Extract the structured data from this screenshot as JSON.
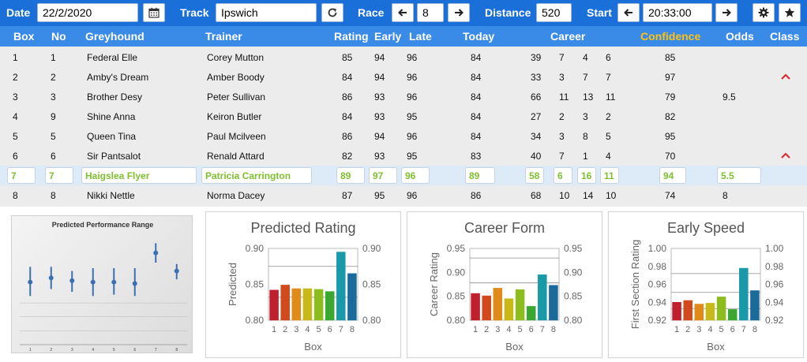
{
  "topbar": {
    "date_label": "Date",
    "date_value": "22/2/2020",
    "track_label": "Track",
    "track_value": "Ipswich",
    "race_label": "Race",
    "race_value": "8",
    "distance_label": "Distance",
    "distance_value": "520",
    "start_label": "Start",
    "start_value": "20:33:00"
  },
  "headers": {
    "box": "Box",
    "no": "No",
    "greyhound": "Greyhound",
    "trainer": "Trainer",
    "rating": "Rating",
    "early": "Early",
    "late": "Late",
    "today": "Today",
    "career": "Career",
    "confidence": "Confidence",
    "odds": "Odds",
    "class": "Class"
  },
  "rows": [
    {
      "box": "1",
      "no": "1",
      "greyhound": "Federal Elle",
      "trainer": "Corey Mutton",
      "rating": "85",
      "early": "94",
      "late": "96",
      "today": "84",
      "c1": "39",
      "c2": "7",
      "c3": "4",
      "c4": "6",
      "confidence": "85",
      "odds": "",
      "class_up": false
    },
    {
      "box": "2",
      "no": "2",
      "greyhound": "Amby's Dream",
      "trainer": "Amber Boody",
      "rating": "84",
      "early": "94",
      "late": "96",
      "today": "84",
      "c1": "33",
      "c2": "3",
      "c3": "7",
      "c4": "7",
      "confidence": "97",
      "odds": "",
      "class_up": true
    },
    {
      "box": "3",
      "no": "3",
      "greyhound": "Brother Desy",
      "trainer": "Peter Sullivan",
      "rating": "86",
      "early": "93",
      "late": "96",
      "today": "84",
      "c1": "66",
      "c2": "11",
      "c3": "13",
      "c4": "11",
      "confidence": "79",
      "odds": "9.5",
      "class_up": false
    },
    {
      "box": "4",
      "no": "9",
      "greyhound": "Shine Anna",
      "trainer": "Keiron Butler",
      "rating": "84",
      "early": "93",
      "late": "95",
      "today": "84",
      "c1": "27",
      "c2": "2",
      "c3": "3",
      "c4": "2",
      "confidence": "82",
      "odds": "",
      "class_up": false
    },
    {
      "box": "5",
      "no": "5",
      "greyhound": "Queen Tina",
      "trainer": "Paul Mcilveen",
      "rating": "86",
      "early": "94",
      "late": "96",
      "today": "84",
      "c1": "34",
      "c2": "3",
      "c3": "8",
      "c4": "5",
      "confidence": "95",
      "odds": "",
      "class_up": false
    },
    {
      "box": "6",
      "no": "6",
      "greyhound": "Sir Pantsalot",
      "trainer": "Renald Attard",
      "rating": "82",
      "early": "93",
      "late": "95",
      "today": "83",
      "c1": "40",
      "c2": "7",
      "c3": "1",
      "c4": "4",
      "confidence": "70",
      "odds": "",
      "class_up": true
    },
    {
      "box": "7",
      "no": "7",
      "greyhound": "Haigslea Flyer",
      "trainer": "Patricia Carrington",
      "rating": "89",
      "early": "97",
      "late": "96",
      "today": "89",
      "c1": "58",
      "c2": "6",
      "c3": "16",
      "c4": "11",
      "confidence": "94",
      "odds": "5.5",
      "class_up": false,
      "selected": true
    },
    {
      "box": "8",
      "no": "8",
      "greyhound": "Nikki Nettle",
      "trainer": "Norma Dacey",
      "rating": "87",
      "early": "95",
      "late": "96",
      "today": "86",
      "c1": "68",
      "c2": "10",
      "c3": "14",
      "c4": "10",
      "confidence": "74",
      "odds": "8",
      "class_up": false
    }
  ],
  "colors": {
    "topbar": "#1a6fd8",
    "header": "#3a8ae8",
    "confidence_header": "#ffc20e",
    "selected_text": "#7fbf2e",
    "class_up_arrow": "#d8252e"
  },
  "bar_colors": [
    "#c0202e",
    "#d04a1e",
    "#e08a1a",
    "#c8b818",
    "#8cbc1e",
    "#3aa830",
    "#1a9aa8",
    "#1a6a9a"
  ],
  "charts": {
    "ppr": {
      "title": "Predicted Performance Range",
      "x_ticks": [
        "1",
        "2",
        "3",
        "4",
        "5",
        "6",
        "7",
        "8"
      ]
    }
  },
  "chart_data": [
    {
      "type": "scatter",
      "title": "Predicted Performance Range",
      "categories": [
        "1",
        "2",
        "3",
        "4",
        "5",
        "6",
        "7",
        "8"
      ],
      "values": [
        0.845,
        0.848,
        0.846,
        0.845,
        0.845,
        0.844,
        0.866,
        0.853
      ],
      "ranges": [
        [
          0.835,
          0.856
        ],
        [
          0.84,
          0.856
        ],
        [
          0.838,
          0.853
        ],
        [
          0.835,
          0.855
        ],
        [
          0.836,
          0.855
        ],
        [
          0.835,
          0.855
        ],
        [
          0.859,
          0.873
        ],
        [
          0.847,
          0.858
        ]
      ]
    },
    {
      "type": "bar",
      "title": "Predicted Rating",
      "xlabel": "Box",
      "ylabel": "Predicted",
      "categories": [
        "1",
        "2",
        "3",
        "4",
        "5",
        "6",
        "7",
        "8"
      ],
      "values": [
        0.842,
        0.849,
        0.844,
        0.844,
        0.843,
        0.84,
        0.895,
        0.865
      ],
      "ylim": [
        0.8,
        0.9
      ],
      "yticks": [
        "0.80",
        "0.85",
        "0.90"
      ],
      "ytick_values": [
        0.8,
        0.85,
        0.9
      ],
      "right_axis": true,
      "ref_lines": [
        0.875,
        0.832
      ]
    },
    {
      "type": "bar",
      "title": "Career Form",
      "xlabel": "Box",
      "ylabel": "Career Rating",
      "categories": [
        "1",
        "2",
        "3",
        "4",
        "5",
        "6",
        "7",
        "8"
      ],
      "values": [
        0.856,
        0.851,
        0.867,
        0.845,
        0.864,
        0.829,
        0.895,
        0.873
      ],
      "ylim": [
        0.8,
        0.95
      ],
      "yticks": [
        "0.80",
        "0.85",
        "0.90",
        "0.95"
      ],
      "ytick_values": [
        0.8,
        0.85,
        0.9,
        0.95
      ],
      "right_axis": true,
      "ref_lines": [
        0.93,
        0.878
      ]
    },
    {
      "type": "bar",
      "title": "Early Speed",
      "xlabel": "Box",
      "ylabel": "First Section Rating",
      "categories": [
        "1",
        "2",
        "3",
        "4",
        "5",
        "6",
        "7",
        "8"
      ],
      "values": [
        0.94,
        0.942,
        0.938,
        0.939,
        0.946,
        0.932,
        0.978,
        0.953
      ],
      "ylim": [
        0.92,
        1.0
      ],
      "yticks": [
        "0.92",
        "0.94",
        "0.96",
        "0.98",
        "1.00"
      ],
      "ytick_values": [
        0.92,
        0.94,
        0.96,
        0.98,
        1.0
      ],
      "right_axis": true,
      "ref_lines": [
        0.972,
        0.951,
        0.933
      ]
    }
  ]
}
